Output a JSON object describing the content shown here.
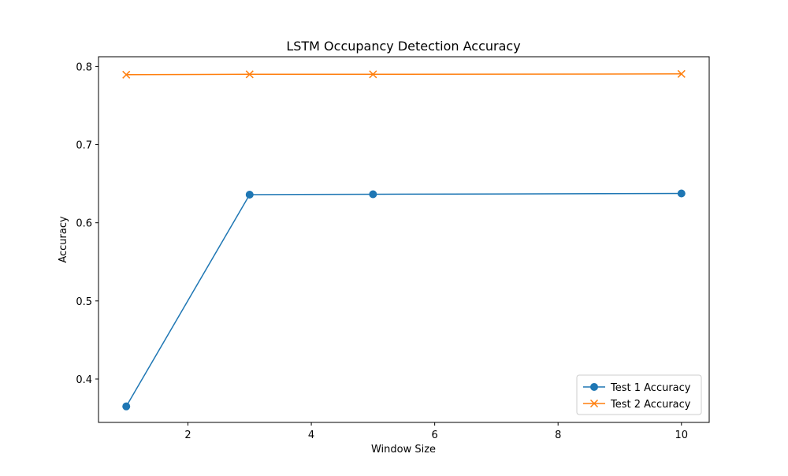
{
  "chart_data": {
    "type": "line",
    "title": "LSTM Occupancy Detection Accuracy",
    "xlabel": "Window Size",
    "ylabel": "Accuracy",
    "x": [
      1,
      3,
      5,
      10
    ],
    "xlim": [
      0.55,
      10.45
    ],
    "ylim": [
      0.3445,
      0.8125
    ],
    "xticks": [
      2,
      4,
      6,
      8,
      10
    ],
    "yticks": [
      0.4,
      0.5,
      0.6,
      0.7,
      0.8
    ],
    "xtick_labels": [
      "2",
      "4",
      "6",
      "8",
      "10"
    ],
    "ytick_labels": [
      "0.4",
      "0.5",
      "0.6",
      "0.7",
      "0.8"
    ],
    "grid": false,
    "legend_position": "bottom-right",
    "series": [
      {
        "name": "Test 1 Accuracy",
        "values": [
          0.365,
          0.636,
          0.6365,
          0.6375
        ],
        "color": "#1f77b4",
        "marker": "circle"
      },
      {
        "name": "Test 2 Accuracy",
        "values": [
          0.7895,
          0.79,
          0.79,
          0.7905
        ],
        "color": "#ff7f0e",
        "marker": "x"
      }
    ]
  }
}
